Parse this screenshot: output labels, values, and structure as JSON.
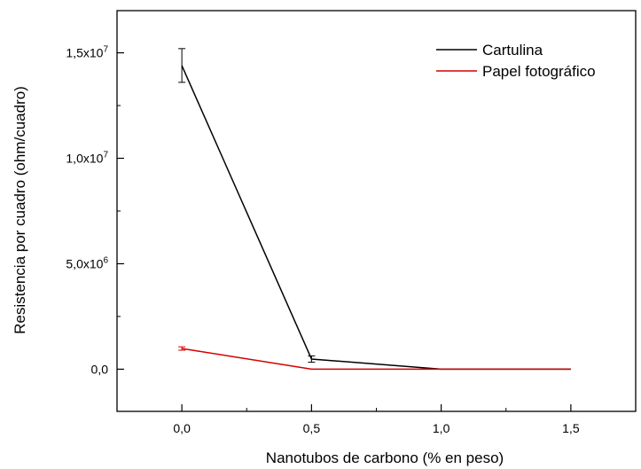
{
  "chart_data": {
    "type": "line",
    "title": "",
    "xlabel": "Nanotubos de carbono (% en peso)",
    "ylabel": "Resistencia por cuadro (ohm/cuadro)",
    "xlim": [
      -0.25,
      1.75
    ],
    "ylim": [
      -2000000,
      17000000
    ],
    "x_ticks": [
      0.0,
      0.5,
      1.0,
      1.5
    ],
    "x_tick_labels": [
      "0,0",
      "0,5",
      "1,0",
      "1,5"
    ],
    "y_ticks": [
      {
        "value": 0,
        "mantissa": "0,0",
        "exp": ""
      },
      {
        "value": 5000000,
        "mantissa": "5,0x10",
        "exp": "6"
      },
      {
        "value": 10000000,
        "mantissa": "1,0x10",
        "exp": "7"
      },
      {
        "value": 15000000,
        "mantissa": "1,5x10",
        "exp": "7"
      }
    ],
    "grid": false,
    "legend_position": "top-right",
    "series": [
      {
        "name": "Cartulina",
        "color": "#000000",
        "x": [
          0.0,
          0.5,
          1.0,
          1.5
        ],
        "y": [
          14400000,
          480000,
          0,
          0
        ],
        "error": [
          800000,
          150000,
          0,
          0
        ]
      },
      {
        "name": "Papel fotográfico",
        "color": "#d40000",
        "x": [
          0.0,
          0.5,
          1.0,
          1.5
        ],
        "y": [
          980000,
          0,
          0,
          0
        ],
        "error": [
          80000,
          0,
          0,
          0
        ]
      }
    ]
  }
}
